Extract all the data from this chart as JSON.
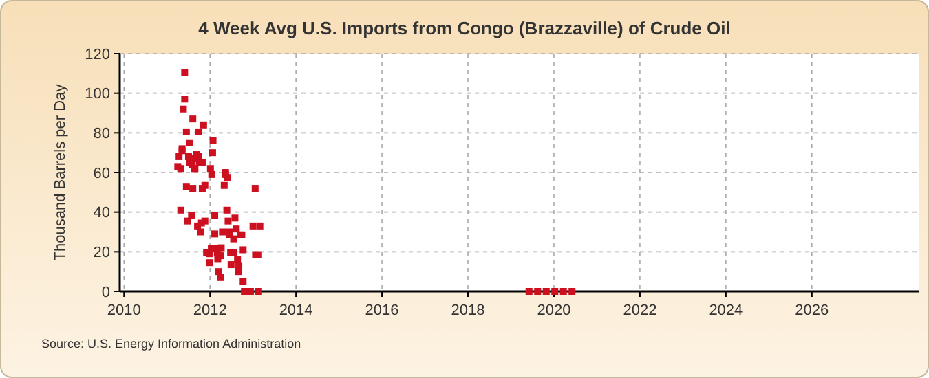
{
  "chart_data": {
    "type": "scatter",
    "title": "4 Week Avg U.S. Imports from Congo (Brazzaville) of Crude Oil",
    "ylabel": "Thousand Barrels per Day",
    "annotations": [
      "Source: U.S. Energy Information Administration"
    ],
    "xlim": [
      2009.9,
      2028.5
    ],
    "xticks": [
      2010,
      2012,
      2014,
      2016,
      2018,
      2020,
      2022,
      2024,
      2026
    ],
    "ylim": [
      0,
      120
    ],
    "yticks": [
      0,
      20,
      40,
      60,
      80,
      100,
      120
    ],
    "grid": true,
    "marker": "square",
    "series": [
      {
        "color": "#cc1020",
        "x": [
          2011.41,
          2011.41,
          2011.38,
          2011.6,
          2011.85,
          2011.45,
          2011.74,
          2012.07,
          2011.35,
          2011.53,
          2011.35,
          2011.28,
          2011.5,
          2011.69,
          2011.73,
          2011.63,
          2011.52,
          2011.58,
          2011.75,
          2011.82,
          2012.06,
          2011.25,
          2011.32,
          2011.63,
          2011.65,
          2012.01,
          2012.04,
          2012.36,
          2012.4,
          2012.36,
          2011.45,
          2011.6,
          2011.82,
          2011.88,
          2012.33,
          2013.05,
          2011.32,
          2011.57,
          2012.11,
          2012.39,
          2011.47,
          2011.88,
          2012.42,
          2012.58,
          2011.71,
          2011.8,
          2013.0,
          2013.16,
          2011.78,
          2012.11,
          2012.29,
          2012.45,
          2012.45,
          2012.61,
          2012.71,
          2012.74,
          2012.55,
          2012.26,
          2012.14,
          2012.77,
          2011.92,
          2011.98,
          2012.03,
          2012.17,
          2012.24,
          2012.48,
          2012.55,
          2013.06,
          2013.13,
          2012.18,
          2012.64,
          2011.99,
          2012.49,
          2012.67,
          2012.2,
          2012.66,
          2012.24,
          2012.77,
          2012.8,
          2012.94,
          2013.13,
          2019.42,
          2019.62,
          2019.82,
          2020.02,
          2020.22,
          2020.42
        ],
        "values": [
          110.5,
          97,
          92,
          87,
          84,
          80.5,
          80.5,
          76,
          72,
          75,
          71,
          68,
          68,
          69,
          68,
          67,
          65,
          64,
          65,
          65,
          70,
          63,
          62,
          62,
          62,
          62,
          59,
          60,
          57.5,
          59,
          53,
          52,
          52,
          53.5,
          53.5,
          52,
          41,
          38.5,
          38.5,
          41,
          35.5,
          35.5,
          35.5,
          37,
          33,
          34.5,
          33,
          33,
          30,
          29,
          30,
          30,
          28.5,
          31.5,
          28.5,
          28.5,
          26.5,
          22,
          21.5,
          21,
          19.5,
          19,
          21.5,
          19.5,
          18,
          19.5,
          19.5,
          18.5,
          18.5,
          16.5,
          16,
          14.5,
          13.5,
          13,
          10,
          10,
          7,
          5,
          0,
          0,
          0,
          0,
          0,
          0,
          0,
          0,
          0
        ]
      }
    ]
  }
}
